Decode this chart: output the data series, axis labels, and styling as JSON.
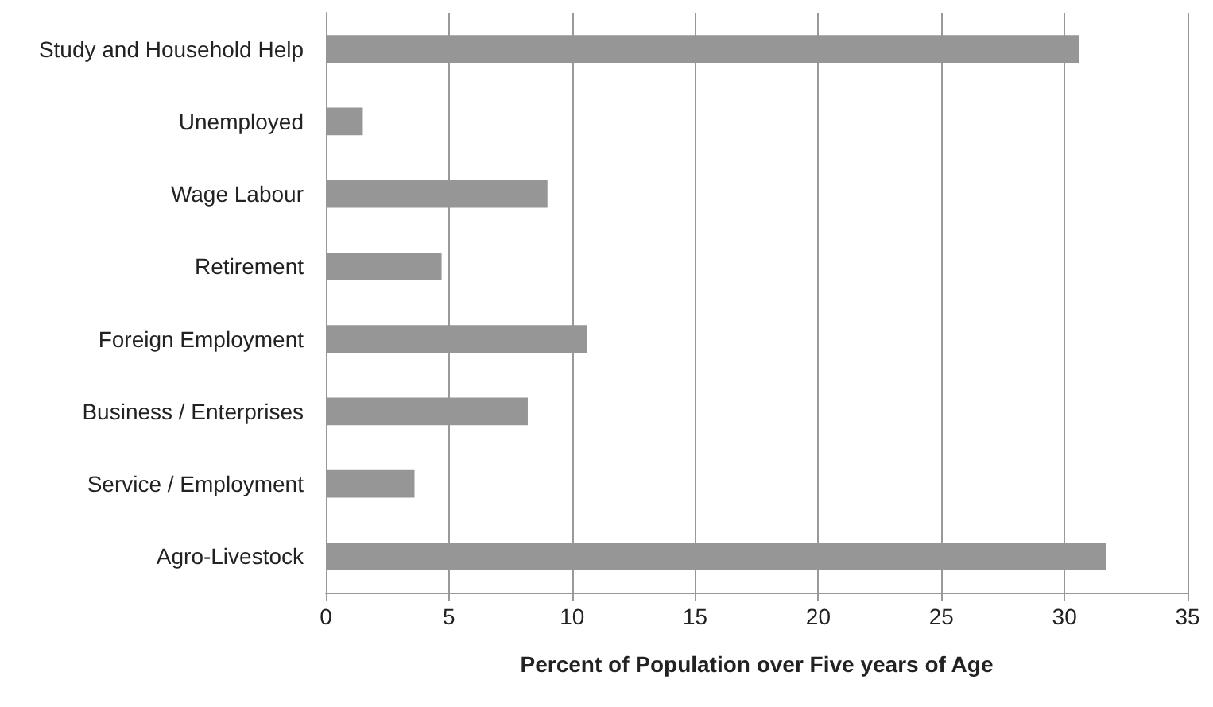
{
  "chart_data": {
    "type": "bar",
    "orientation": "horizontal",
    "xlabel": "Percent of Population over Five years of Age",
    "categories": [
      "Study and Household Help",
      "Unemployed",
      "Wage Labour",
      "Retirement",
      "Foreign Employment",
      "Business / Enterprises",
      "Service / Employment",
      "Agro-Livestock"
    ],
    "values": [
      30.6,
      1.5,
      9.0,
      4.7,
      10.6,
      8.2,
      3.6,
      31.7
    ],
    "color": "#969696",
    "xlim": [
      0,
      35
    ],
    "xticks": [
      0,
      5,
      10,
      15,
      20,
      25,
      30,
      35
    ],
    "grid": "x"
  }
}
